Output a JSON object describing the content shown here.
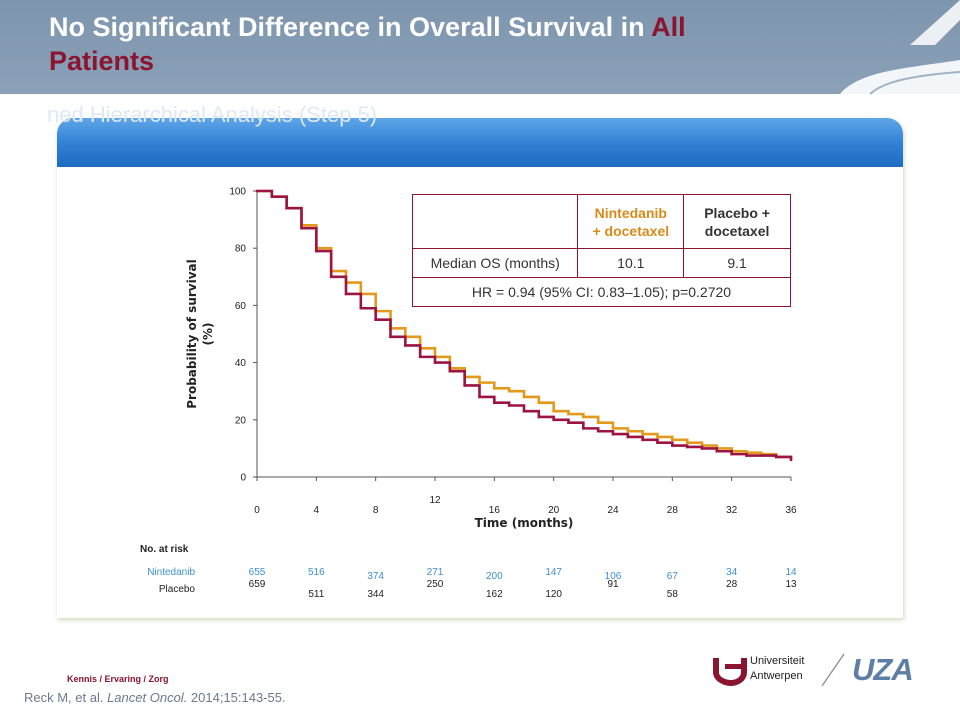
{
  "title": {
    "part1": "No Significant Difference in Overall Survival in ",
    "accent": "All",
    "part2": "Patients"
  },
  "panel_heading": "ned Hierarchical Analysis (Step 5)",
  "colors": {
    "nintedanib": "#e39a1c",
    "placebo": "#9b1443",
    "accent": "#8b1430",
    "risk_nintedanib": "#3d8fd6"
  },
  "summary_table": {
    "nintedanib_header_line1": "Nintedanib",
    "nintedanib_header_line2": "+ docetaxel",
    "placebo_header_line1": "Placebo +",
    "placebo_header_line2": "docetaxel",
    "row_label": "Median OS (months)",
    "nintedanib_median": "10.1",
    "placebo_median": "9.1",
    "hr_text": "HR = 0.94 (95% CI: 0.83–1.05); p=0.2720"
  },
  "risk_table": {
    "title": "No. at risk",
    "nintedanib_label": "Nintedanib",
    "placebo_label": "Placebo",
    "nintedanib": [
      "655",
      "516",
      "374",
      "271",
      "200",
      "147",
      "106",
      "67",
      "34",
      "14"
    ],
    "placebo": [
      "659",
      "511",
      "344",
      "250",
      "162",
      "120",
      "91",
      "58",
      "28",
      "13"
    ]
  },
  "footer": {
    "authors": "Kennis / Ervaring / Zorg",
    "reference_authors": "Reck M, et al. ",
    "reference_journal": "Lancet Oncol.",
    "reference_rest": " 2014;15:143-55.",
    "ua_line1": "Universiteit",
    "ua_line2": "Antwerpen",
    "uza": "UZA"
  },
  "chart_data": {
    "type": "line",
    "xlabel": "Time (months)",
    "ylabel": "Probability of survival (%)",
    "xlim": [
      0,
      36
    ],
    "ylim": [
      0,
      100
    ],
    "xticks": [
      "0",
      "4",
      "8",
      "12",
      "16",
      "20",
      "24",
      "28",
      "32",
      "36"
    ],
    "yticks": [
      "0",
      "20",
      "40",
      "60",
      "80",
      "100"
    ],
    "grid": false,
    "series": [
      {
        "name": "Nintedanib",
        "x": [
          0,
          1,
          2,
          3,
          4,
          5,
          6,
          7,
          8,
          9,
          10,
          11,
          12,
          13,
          14,
          15,
          16,
          17,
          18,
          19,
          20,
          21,
          22,
          23,
          24,
          25,
          26,
          27,
          28,
          29,
          30,
          31,
          32,
          33,
          34,
          35,
          36
        ],
        "y": [
          100,
          98,
          94,
          88,
          80,
          72,
          68,
          64,
          58,
          52,
          49,
          45,
          42,
          38,
          35,
          33,
          31,
          30,
          28,
          26,
          23,
          22,
          21,
          19,
          17,
          16,
          15,
          14,
          13,
          12,
          11,
          10,
          9,
          8.5,
          8,
          7,
          6
        ]
      },
      {
        "name": "Placebo",
        "x": [
          0,
          1,
          2,
          3,
          4,
          5,
          6,
          7,
          8,
          9,
          10,
          11,
          12,
          13,
          14,
          15,
          16,
          17,
          18,
          19,
          20,
          21,
          22,
          23,
          24,
          25,
          26,
          27,
          28,
          29,
          30,
          31,
          32,
          33,
          34,
          35,
          36
        ],
        "y": [
          100,
          98,
          94,
          87,
          79,
          70,
          64,
          59,
          55,
          49,
          46,
          42,
          40,
          37,
          32,
          28,
          26,
          25,
          23,
          21,
          20,
          19,
          17,
          16,
          15,
          14,
          13,
          12,
          11,
          10.5,
          10,
          9,
          8,
          7.5,
          7.5,
          7,
          6
        ]
      }
    ]
  }
}
